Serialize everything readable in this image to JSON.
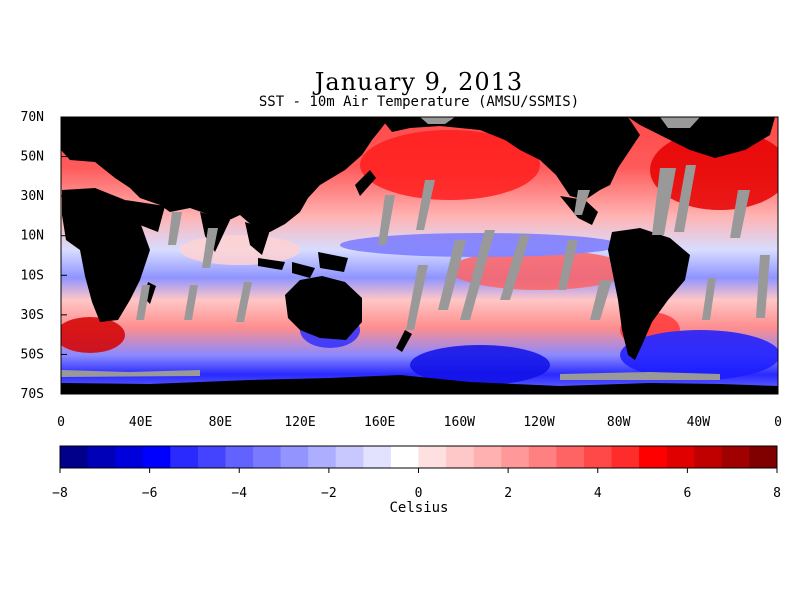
{
  "title": "January 9, 2013",
  "subtitle": "SST - 10m Air Temperature (AMSU/SSMIS)",
  "map": {
    "lat_labels": [
      "70N",
      "50N",
      "30N",
      "10N",
      "10S",
      "30S",
      "50S",
      "70S"
    ],
    "lon_labels": [
      "0",
      "40E",
      "80E",
      "120E",
      "160E",
      "160W",
      "120W",
      "80W",
      "40W",
      "0"
    ],
    "land_color": "#000000",
    "missing_color": "#999999"
  },
  "colorbar": {
    "label": "Celsius",
    "ticks": [
      "-8",
      "-6",
      "-4",
      "-2",
      "0",
      "2",
      "4",
      "6",
      "8"
    ],
    "range": [
      -8,
      8
    ],
    "colors": [
      "#00008b",
      "#0000b8",
      "#0000dc",
      "#0000ff",
      "#2a2aff",
      "#4444ff",
      "#6262ff",
      "#7a7aff",
      "#9494ff",
      "#aeaeff",
      "#c8c8ff",
      "#e2e2ff",
      "#ffffff",
      "#ffe0e0",
      "#ffc8c8",
      "#ffb0b0",
      "#ff9898",
      "#ff8080",
      "#ff6464",
      "#ff4848",
      "#ff2c2c",
      "#ff0000",
      "#e00000",
      "#c00000",
      "#a00000",
      "#800000"
    ]
  }
}
